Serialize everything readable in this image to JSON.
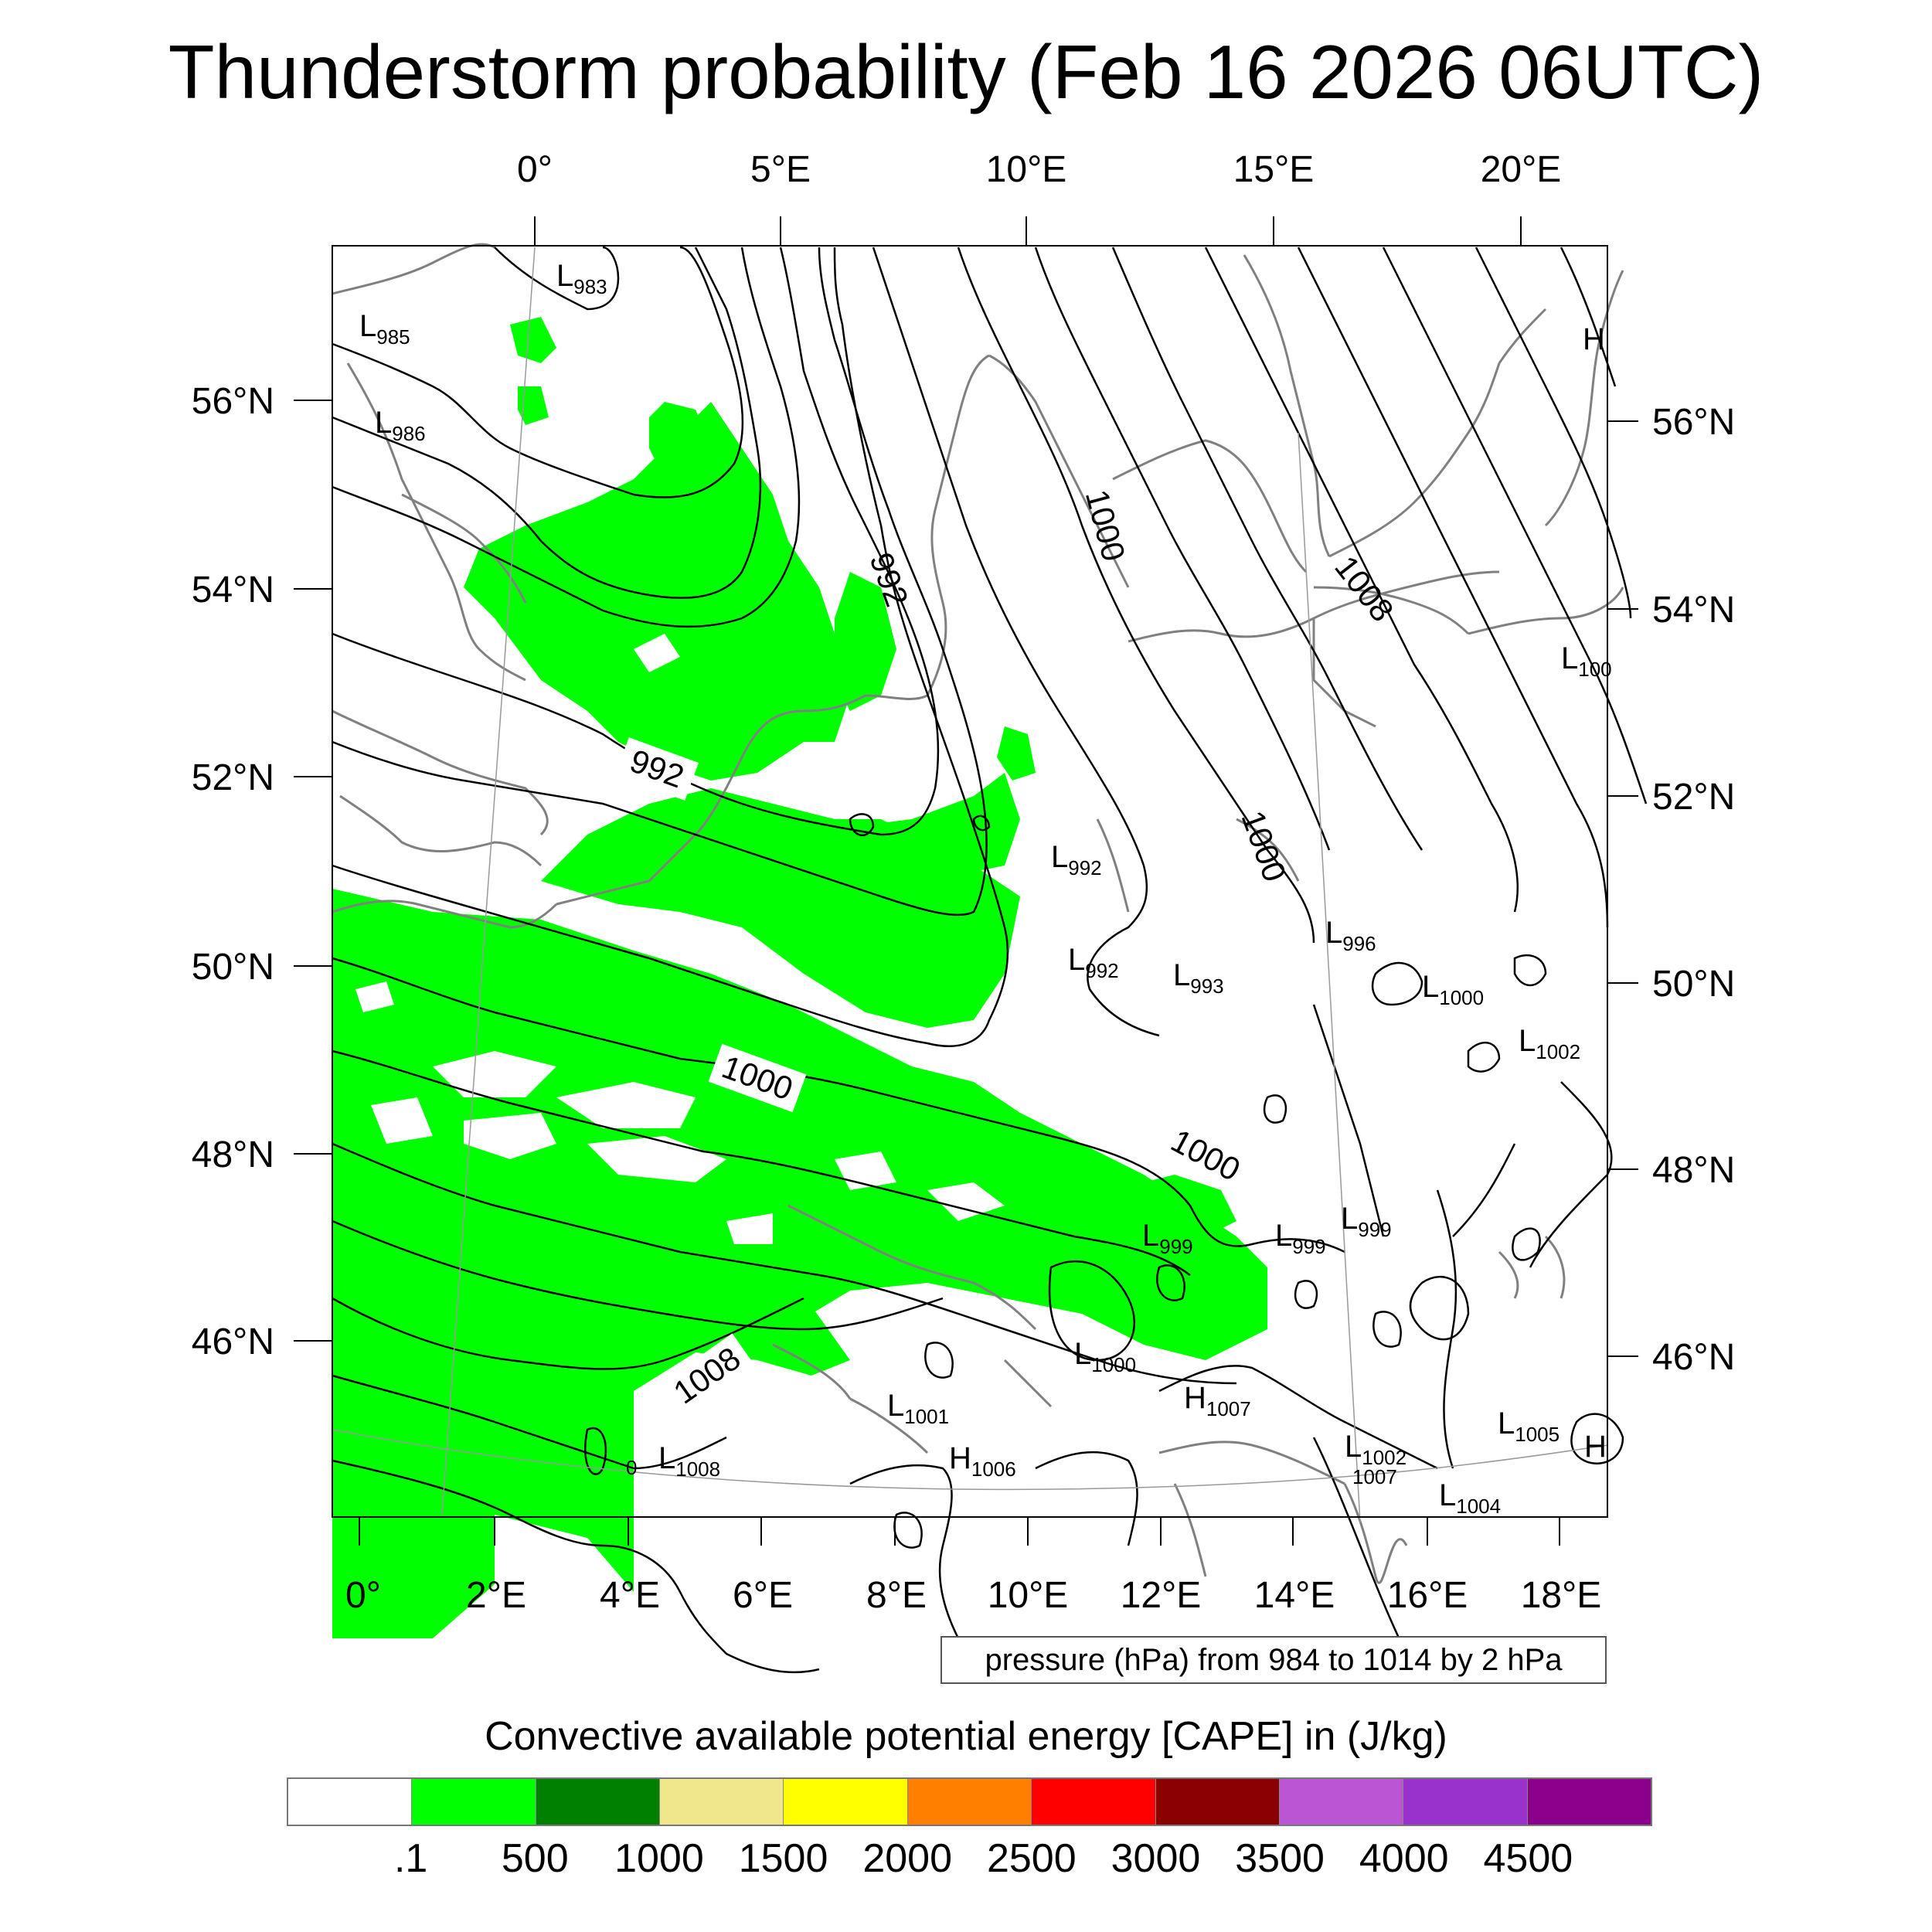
{
  "title": "Thunderstorm probability (Feb 16 2026 06UTC)",
  "top_axis_labels": [
    "0°",
    "5°E",
    "10°E",
    "15°E",
    "20°E"
  ],
  "bottom_axis_labels": [
    "0°",
    "2°E",
    "4°E",
    "6°E",
    "8°E",
    "10°E",
    "12°E",
    "14°E",
    "16°E",
    "18°E"
  ],
  "left_axis_labels": [
    "56°N",
    "54°N",
    "52°N",
    "50°N",
    "48°N",
    "46°N"
  ],
  "right_axis_labels": [
    "56°N",
    "54°N",
    "52°N",
    "50°N",
    "48°N",
    "46°N"
  ],
  "isobar_labels": [
    "992",
    "992",
    "1000",
    "1000",
    "1000",
    "1000",
    "1008",
    "1008"
  ],
  "pressure_centers": [
    {
      "type": "L",
      "value": "983"
    },
    {
      "type": "L",
      "value": "985"
    },
    {
      "type": "L",
      "value": "986"
    },
    {
      "type": "L",
      "value": "992"
    },
    {
      "type": "L",
      "value": "992"
    },
    {
      "type": "L",
      "value": "993"
    },
    {
      "type": "L",
      "value": "996"
    },
    {
      "type": "L",
      "value": "1000"
    },
    {
      "type": "L",
      "value": "1002"
    },
    {
      "type": "L",
      "value": "999"
    },
    {
      "type": "L",
      "value": "999"
    },
    {
      "type": "L",
      "value": "999"
    },
    {
      "type": "L",
      "value": "1000"
    },
    {
      "type": "L",
      "value": "1001"
    },
    {
      "type": "H",
      "value": "1007"
    },
    {
      "type": "L",
      "value": "1008"
    },
    {
      "type": "H",
      "value": "1006"
    },
    {
      "type": "L",
      "value": "1002"
    },
    {
      "type": "L",
      "value": "1005"
    },
    {
      "type": "L",
      "value": "1004"
    },
    {
      "type": "L",
      "value": "100"
    },
    {
      "type": "H",
      "value": ""
    },
    {
      "type": "H",
      "value": ""
    }
  ],
  "stray_labels": [
    "0",
    "1007"
  ],
  "pressure_note": "pressure (hPa) from 984 to 1014 by 2 hPa",
  "cape_title": "Convective available potential energy [CAPE] in (J/kg)",
  "colorbar": {
    "colors": [
      "#ffffff",
      "#00ff00",
      "#008000",
      "#f0e68c",
      "#ffff00",
      "#ff8000",
      "#ff0000",
      "#8b0000",
      "#ba55d3",
      "#9932cc",
      "#8b008b"
    ],
    "labels": [
      ".1",
      "500",
      "1000",
      "1500",
      "2000",
      "2500",
      "3000",
      "3500",
      "4000",
      "4500"
    ]
  },
  "colors": {
    "cape_fill": "#00ff00",
    "coastline": "#808080",
    "isobar": "#000000",
    "graticule": "#999999"
  }
}
